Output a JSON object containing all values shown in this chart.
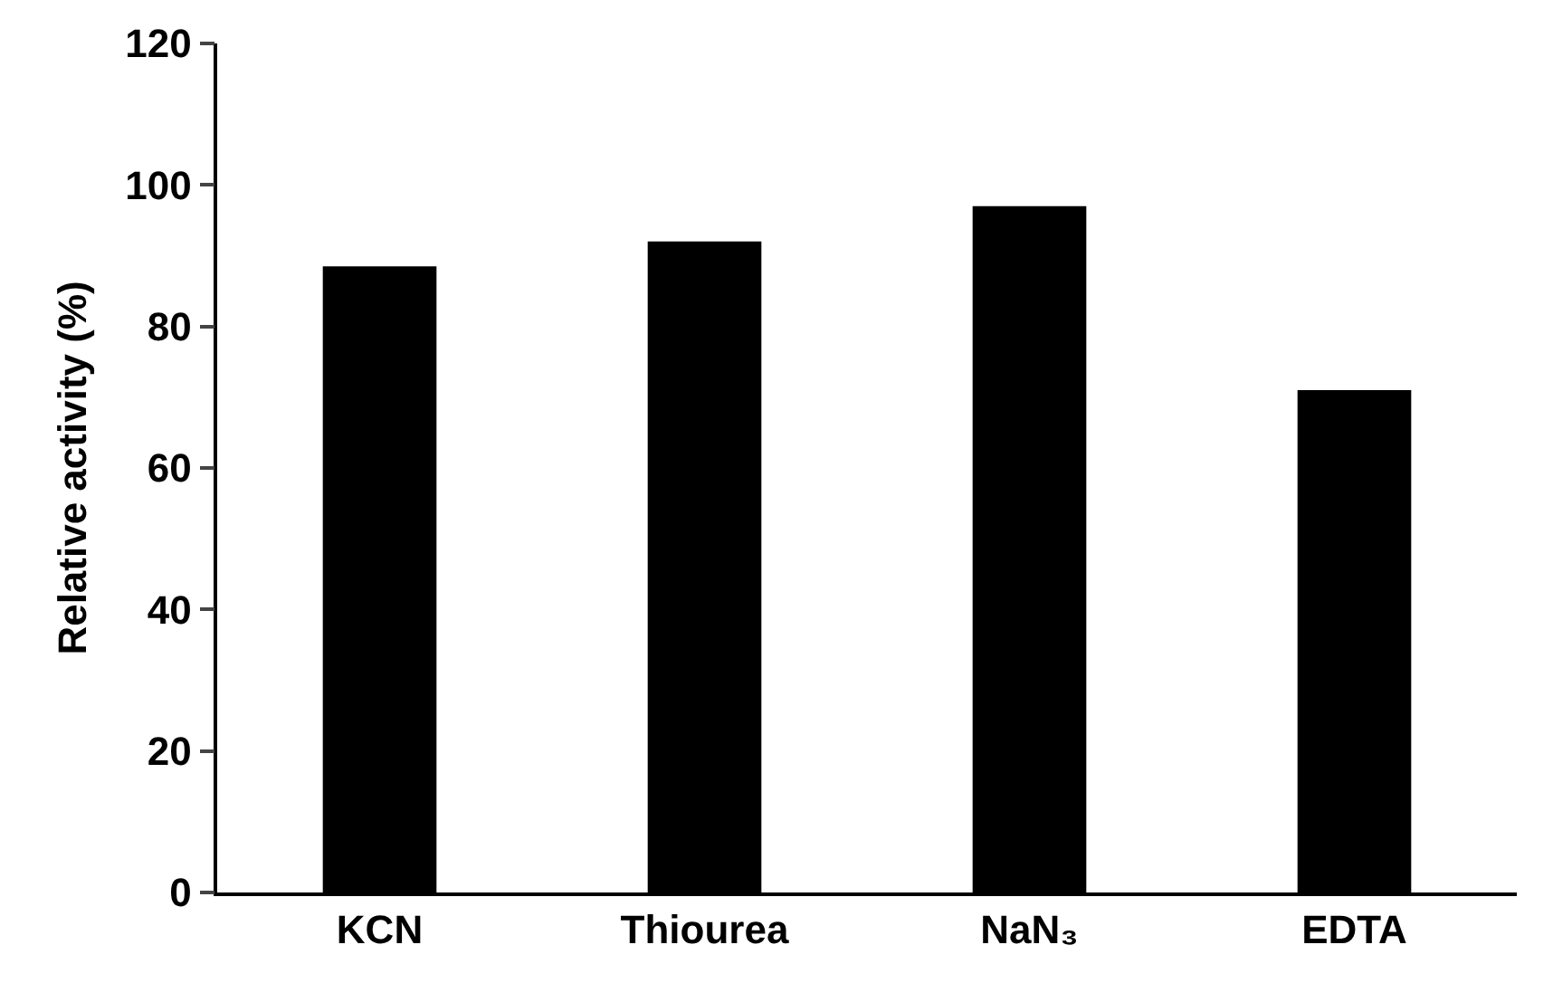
{
  "chart_data": {
    "type": "bar",
    "ylabel": "Relative activity (%)",
    "categories": [
      "KCN",
      "Thiourea",
      "NaN₃",
      "EDTA"
    ],
    "values": [
      88.5,
      92,
      97,
      71
    ],
    "color": "#000000",
    "ylim": [
      0,
      120
    ],
    "yticks": [
      0,
      20,
      40,
      60,
      80,
      100,
      120
    ]
  }
}
